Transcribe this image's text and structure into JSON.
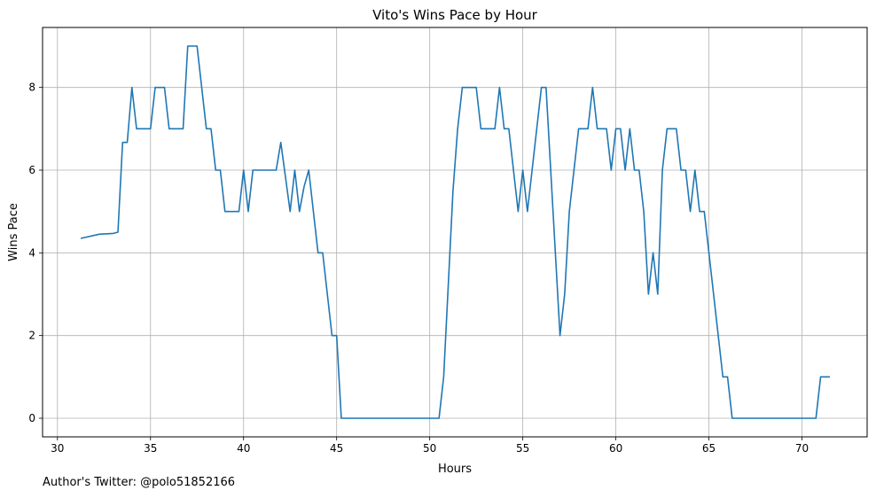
{
  "footer": "Author's Twitter: @polo51852166",
  "chart_data": {
    "type": "line",
    "title": "Vito's Wins Pace by Hour",
    "xlabel": "Hours",
    "ylabel": "Wins Pace",
    "xlim": [
      29.2,
      73.5
    ],
    "ylim": [
      -0.45,
      9.45
    ],
    "xticks": [
      30,
      35,
      40,
      45,
      50,
      55,
      60,
      65,
      70
    ],
    "yticks": [
      0,
      2,
      4,
      6,
      8
    ],
    "grid": true,
    "color": "#1f77b4",
    "series": [
      {
        "x": [
          31.25,
          32.25,
          33.0,
          33.25,
          33.5,
          33.75,
          34.0,
          34.25,
          35.0,
          35.25,
          35.75,
          36.0,
          36.75,
          37.0,
          37.5,
          38.0,
          38.25,
          38.5,
          38.75,
          39.0,
          39.75,
          40.0,
          40.25,
          40.5,
          41.75,
          42.0,
          42.5,
          42.75,
          43.0,
          43.25,
          43.5,
          44.0,
          44.25,
          44.75,
          45.0,
          45.25,
          50.5,
          50.75,
          51.25,
          51.5,
          51.75,
          52.5,
          52.75,
          53.5,
          53.75,
          54.0,
          54.25,
          54.75,
          55.0,
          55.25,
          56.0,
          56.25,
          57.0,
          57.25,
          57.5,
          57.75,
          58.0,
          58.5,
          58.75,
          59.0,
          59.5,
          59.75,
          60.0,
          60.25,
          60.5,
          60.75,
          61.0,
          61.25,
          61.5,
          61.75,
          62.0,
          62.25,
          62.5,
          62.75,
          63.25,
          63.5,
          63.75,
          64.0,
          64.25,
          64.5,
          64.75,
          65.75,
          66.0,
          66.25,
          70.75,
          71.0,
          71.5
        ],
        "y": [
          4.35,
          4.45,
          4.47,
          4.5,
          6.67,
          6.67,
          8.0,
          7.0,
          7.0,
          8.0,
          8.0,
          7.0,
          7.0,
          9.0,
          9.0,
          7.0,
          7.0,
          6.0,
          6.0,
          5.0,
          5.0,
          6.0,
          5.0,
          6.0,
          6.0,
          6.67,
          5.0,
          6.0,
          5.0,
          5.6,
          6.0,
          4.0,
          4.0,
          2.0,
          2.0,
          0.0,
          0.0,
          1.0,
          5.5,
          7.0,
          8.0,
          8.0,
          7.0,
          7.0,
          8.0,
          7.0,
          7.0,
          5.0,
          6.0,
          5.0,
          8.0,
          8.0,
          2.0,
          3.0,
          5.0,
          6.0,
          7.0,
          7.0,
          8.0,
          7.0,
          7.0,
          6.0,
          7.0,
          7.0,
          6.0,
          7.0,
          6.0,
          6.0,
          5.0,
          3.0,
          4.0,
          3.0,
          6.0,
          7.0,
          7.0,
          6.0,
          6.0,
          5.0,
          6.0,
          5.0,
          5.0,
          1.0,
          1.0,
          0.0,
          0.0,
          1.0,
          1.0
        ]
      }
    ]
  }
}
